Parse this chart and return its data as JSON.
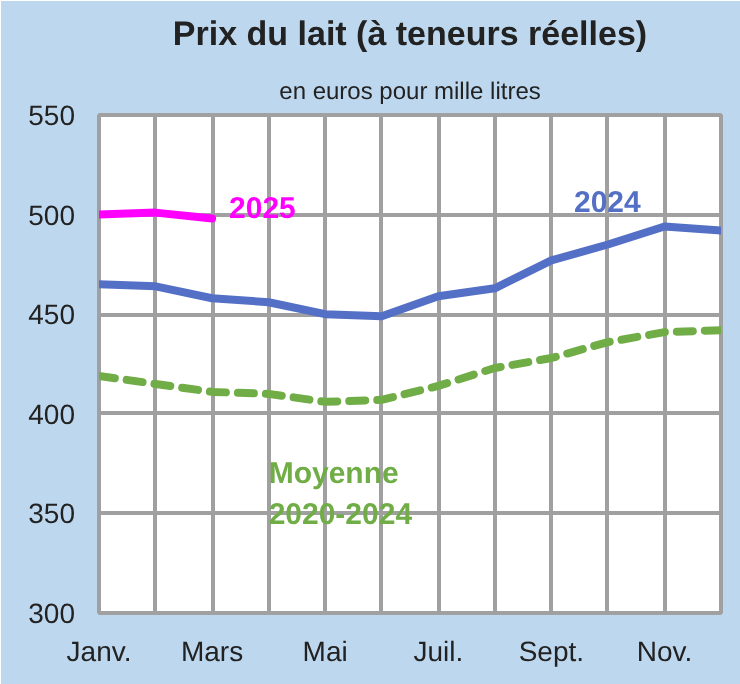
{
  "chart_data": {
    "type": "line",
    "title": "Prix du lait (à teneurs réelles)",
    "subtitle": "en euros pour mille litres",
    "categories": [
      "Janv.",
      null,
      "Mars",
      null,
      "Mai",
      null,
      "Juil.",
      null,
      "Sept.",
      null,
      "Nov.",
      null
    ],
    "ylim": [
      300,
      550
    ],
    "yticks": [
      300,
      350,
      400,
      450,
      500,
      550
    ],
    "grid": true,
    "series": [
      {
        "name": "2025",
        "color": "#ff00ff",
        "line_style": "solid",
        "values": [
          500,
          501,
          498,
          null,
          null,
          null,
          null,
          null,
          null,
          null,
          null,
          null
        ]
      },
      {
        "name": "2024",
        "color": "#5470c6",
        "line_style": "solid",
        "values": [
          465,
          464,
          458,
          456,
          450,
          449,
          459,
          463,
          477,
          485,
          494,
          492
        ]
      },
      {
        "name": "Moyenne 2020-2024",
        "color": "#70ad47",
        "line_style": "dashed",
        "values": [
          419,
          415,
          411,
          410,
          406,
          407,
          414,
          423,
          428,
          436,
          441,
          442
        ]
      }
    ]
  }
}
